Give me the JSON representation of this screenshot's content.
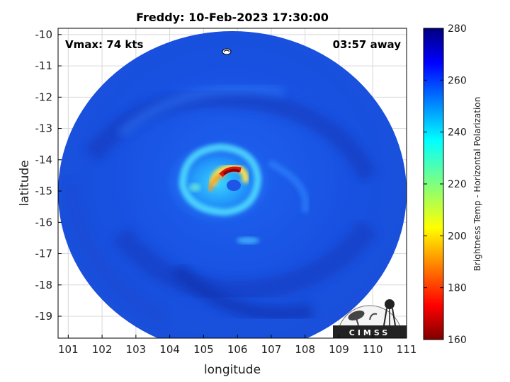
{
  "title": "Freddy: 10-Feb-2023 17:30:00",
  "annotations": {
    "vmax": "Vmax: 74 kts",
    "away": "03:57 away"
  },
  "axes": {
    "xlabel": "longitude",
    "ylabel": "latitude",
    "xlim": [
      100.7,
      111
    ],
    "ylim": [
      -19.7,
      -9.8
    ],
    "xticks": [
      "101",
      "102",
      "103",
      "104",
      "105",
      "106",
      "107",
      "108",
      "109",
      "110",
      "111"
    ],
    "yticks": [
      "-10",
      "-11",
      "-12",
      "-13",
      "-14",
      "-15",
      "-16",
      "-17",
      "-18",
      "-19"
    ],
    "grid": true
  },
  "colorbar": {
    "label": "Brightness Temp - Horizontal Polarization",
    "ticks": [
      "280",
      "260",
      "240",
      "220",
      "200",
      "180",
      "160"
    ],
    "range": [
      160,
      280
    ],
    "colormap": "jet"
  },
  "storm_center": {
    "lon": 105.9,
    "lat": -14.7
  },
  "logo": {
    "text": "CIMSS"
  },
  "colors": {
    "background_field": "#1a55e8",
    "eyewall_hot": "#8b0000",
    "frame": "#000000"
  }
}
